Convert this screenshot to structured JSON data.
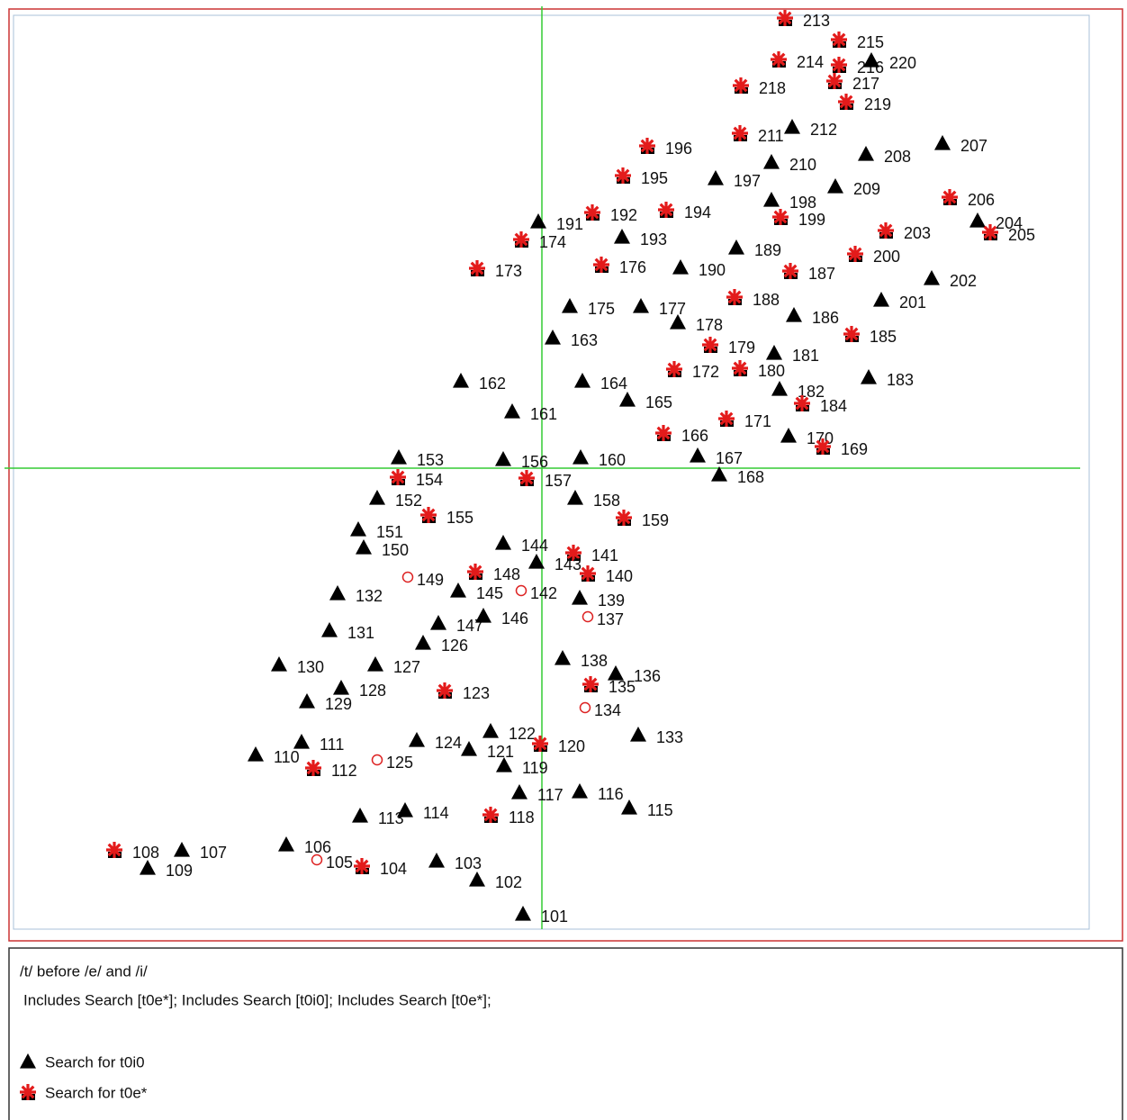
{
  "title": "/t/ before /e/ and /i/",
  "subtitle": "Includes Search [t0e*]; Includes Search [t0i0]; Includes Search [t0e*];",
  "legend": [
    {
      "label": "Search for t0i0",
      "marker": "triangle"
    },
    {
      "label": "Search for t0e*",
      "marker": "star"
    }
  ],
  "points": [
    {
      "label": "213",
      "marker": "star"
    },
    {
      "label": "215",
      "marker": "star"
    },
    {
      "label": "214",
      "marker": "star"
    },
    {
      "label": "216",
      "marker": "star"
    },
    {
      "label": "220",
      "marker": "triangle"
    },
    {
      "label": "217",
      "marker": "star"
    },
    {
      "label": "219",
      "marker": "star"
    },
    {
      "label": "218",
      "marker": "star"
    },
    {
      "label": "211",
      "marker": "star"
    },
    {
      "label": "212",
      "marker": "triangle"
    },
    {
      "label": "207",
      "marker": "triangle"
    },
    {
      "label": "208",
      "marker": "triangle"
    },
    {
      "label": "196",
      "marker": "star"
    },
    {
      "label": "210",
      "marker": "triangle"
    },
    {
      "label": "197",
      "marker": "triangle"
    },
    {
      "label": "195",
      "marker": "star"
    },
    {
      "label": "209",
      "marker": "triangle"
    },
    {
      "label": "198",
      "marker": "triangle"
    },
    {
      "label": "206",
      "marker": "star"
    },
    {
      "label": "204",
      "marker": "triangle"
    },
    {
      "label": "205",
      "marker": "star"
    },
    {
      "label": "191",
      "marker": "triangle"
    },
    {
      "label": "192",
      "marker": "star"
    },
    {
      "label": "194",
      "marker": "star"
    },
    {
      "label": "199",
      "marker": "star"
    },
    {
      "label": "203",
      "marker": "star"
    },
    {
      "label": "193",
      "marker": "triangle"
    },
    {
      "label": "174",
      "marker": "star"
    },
    {
      "label": "189",
      "marker": "triangle"
    },
    {
      "label": "200",
      "marker": "star"
    },
    {
      "label": "173",
      "marker": "star"
    },
    {
      "label": "176",
      "marker": "star"
    },
    {
      "label": "190",
      "marker": "triangle"
    },
    {
      "label": "187",
      "marker": "star"
    },
    {
      "label": "202",
      "marker": "triangle"
    },
    {
      "label": "175",
      "marker": "triangle"
    },
    {
      "label": "177",
      "marker": "triangle"
    },
    {
      "label": "188",
      "marker": "star"
    },
    {
      "label": "201",
      "marker": "triangle"
    },
    {
      "label": "178",
      "marker": "triangle"
    },
    {
      "label": "186",
      "marker": "triangle"
    },
    {
      "label": "163",
      "marker": "triangle"
    },
    {
      "label": "185",
      "marker": "star"
    },
    {
      "label": "179",
      "marker": "star"
    },
    {
      "label": "181",
      "marker": "triangle"
    },
    {
      "label": "162",
      "marker": "triangle"
    },
    {
      "label": "164",
      "marker": "triangle"
    },
    {
      "label": "172",
      "marker": "star"
    },
    {
      "label": "180",
      "marker": "star"
    },
    {
      "label": "183",
      "marker": "triangle"
    },
    {
      "label": "165",
      "marker": "triangle"
    },
    {
      "label": "182",
      "marker": "triangle"
    },
    {
      "label": "184",
      "marker": "star"
    },
    {
      "label": "161",
      "marker": "triangle"
    },
    {
      "label": "171",
      "marker": "star"
    },
    {
      "label": "166",
      "marker": "star"
    },
    {
      "label": "170",
      "marker": "triangle"
    },
    {
      "label": "169",
      "marker": "star"
    },
    {
      "label": "153",
      "marker": "triangle"
    },
    {
      "label": "156",
      "marker": "triangle"
    },
    {
      "label": "160",
      "marker": "triangle"
    },
    {
      "label": "167",
      "marker": "triangle"
    },
    {
      "label": "154",
      "marker": "star"
    },
    {
      "label": "157",
      "marker": "star"
    },
    {
      "label": "168",
      "marker": "triangle"
    },
    {
      "label": "152",
      "marker": "triangle"
    },
    {
      "label": "158",
      "marker": "triangle"
    },
    {
      "label": "155",
      "marker": "star"
    },
    {
      "label": "159",
      "marker": "star"
    },
    {
      "label": "151",
      "marker": "triangle"
    },
    {
      "label": "150",
      "marker": "triangle"
    },
    {
      "label": "144",
      "marker": "triangle"
    },
    {
      "label": "141",
      "marker": "star"
    },
    {
      "label": "143",
      "marker": "triangle"
    },
    {
      "label": "140",
      "marker": "star"
    },
    {
      "label": "149",
      "marker": "circle"
    },
    {
      "label": "148",
      "marker": "star"
    },
    {
      "label": "142",
      "marker": "circle"
    },
    {
      "label": "145",
      "marker": "triangle"
    },
    {
      "label": "139",
      "marker": "triangle"
    },
    {
      "label": "132",
      "marker": "triangle"
    },
    {
      "label": "137",
      "marker": "circle"
    },
    {
      "label": "147",
      "marker": "triangle"
    },
    {
      "label": "146",
      "marker": "triangle"
    },
    {
      "label": "131",
      "marker": "triangle"
    },
    {
      "label": "126",
      "marker": "triangle"
    },
    {
      "label": "138",
      "marker": "triangle"
    },
    {
      "label": "130",
      "marker": "triangle"
    },
    {
      "label": "127",
      "marker": "triangle"
    },
    {
      "label": "136",
      "marker": "triangle"
    },
    {
      "label": "135",
      "marker": "star"
    },
    {
      "label": "128",
      "marker": "triangle"
    },
    {
      "label": "123",
      "marker": "star"
    },
    {
      "label": "129",
      "marker": "triangle"
    },
    {
      "label": "134",
      "marker": "circle"
    },
    {
      "label": "133",
      "marker": "triangle"
    },
    {
      "label": "122",
      "marker": "triangle"
    },
    {
      "label": "111",
      "marker": "triangle"
    },
    {
      "label": "124",
      "marker": "triangle"
    },
    {
      "label": "121",
      "marker": "triangle"
    },
    {
      "label": "120",
      "marker": "star"
    },
    {
      "label": "110",
      "marker": "triangle"
    },
    {
      "label": "125",
      "marker": "circle"
    },
    {
      "label": "112",
      "marker": "star"
    },
    {
      "label": "119",
      "marker": "triangle"
    },
    {
      "label": "117",
      "marker": "triangle"
    },
    {
      "label": "116",
      "marker": "triangle"
    },
    {
      "label": "115",
      "marker": "triangle"
    },
    {
      "label": "113",
      "marker": "triangle"
    },
    {
      "label": "114",
      "marker": "triangle"
    },
    {
      "label": "118",
      "marker": "star"
    },
    {
      "label": "106",
      "marker": "triangle"
    },
    {
      "label": "108",
      "marker": "star"
    },
    {
      "label": "107",
      "marker": "triangle"
    },
    {
      "label": "109",
      "marker": "triangle"
    },
    {
      "label": "105",
      "marker": "circle"
    },
    {
      "label": "104",
      "marker": "star"
    },
    {
      "label": "103",
      "marker": "triangle"
    },
    {
      "label": "102",
      "marker": "triangle"
    },
    {
      "label": "101",
      "marker": "triangle"
    }
  ]
}
